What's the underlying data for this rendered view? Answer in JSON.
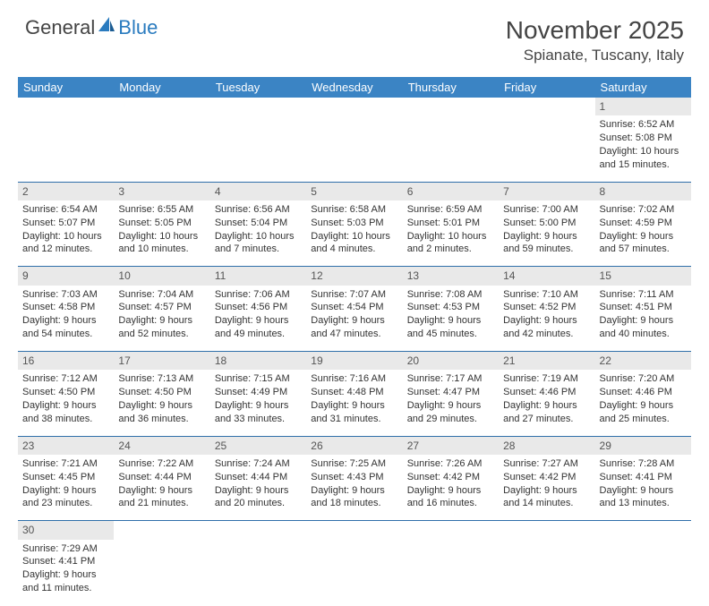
{
  "logo": {
    "part1": "General",
    "part2": "Blue"
  },
  "title": {
    "month": "November 2025",
    "location": "Spianate, Tuscany, Italy"
  },
  "colors": {
    "header_bg": "#3b84c4",
    "header_text": "#ffffff",
    "daynum_bg": "#e9e9e9",
    "rule": "#2f6faa",
    "logo_blue": "#2a7bbf",
    "text": "#333333"
  },
  "weekdays": [
    "Sunday",
    "Monday",
    "Tuesday",
    "Wednesday",
    "Thursday",
    "Friday",
    "Saturday"
  ],
  "weeks": [
    {
      "nums": [
        "",
        "",
        "",
        "",
        "",
        "",
        "1"
      ],
      "cells": [
        null,
        null,
        null,
        null,
        null,
        null,
        {
          "sunrise": "Sunrise: 6:52 AM",
          "sunset": "Sunset: 5:08 PM",
          "day1": "Daylight: 10 hours",
          "day2": "and 15 minutes."
        }
      ]
    },
    {
      "nums": [
        "2",
        "3",
        "4",
        "5",
        "6",
        "7",
        "8"
      ],
      "cells": [
        {
          "sunrise": "Sunrise: 6:54 AM",
          "sunset": "Sunset: 5:07 PM",
          "day1": "Daylight: 10 hours",
          "day2": "and 12 minutes."
        },
        {
          "sunrise": "Sunrise: 6:55 AM",
          "sunset": "Sunset: 5:05 PM",
          "day1": "Daylight: 10 hours",
          "day2": "and 10 minutes."
        },
        {
          "sunrise": "Sunrise: 6:56 AM",
          "sunset": "Sunset: 5:04 PM",
          "day1": "Daylight: 10 hours",
          "day2": "and 7 minutes."
        },
        {
          "sunrise": "Sunrise: 6:58 AM",
          "sunset": "Sunset: 5:03 PM",
          "day1": "Daylight: 10 hours",
          "day2": "and 4 minutes."
        },
        {
          "sunrise": "Sunrise: 6:59 AM",
          "sunset": "Sunset: 5:01 PM",
          "day1": "Daylight: 10 hours",
          "day2": "and 2 minutes."
        },
        {
          "sunrise": "Sunrise: 7:00 AM",
          "sunset": "Sunset: 5:00 PM",
          "day1": "Daylight: 9 hours",
          "day2": "and 59 minutes."
        },
        {
          "sunrise": "Sunrise: 7:02 AM",
          "sunset": "Sunset: 4:59 PM",
          "day1": "Daylight: 9 hours",
          "day2": "and 57 minutes."
        }
      ]
    },
    {
      "nums": [
        "9",
        "10",
        "11",
        "12",
        "13",
        "14",
        "15"
      ],
      "cells": [
        {
          "sunrise": "Sunrise: 7:03 AM",
          "sunset": "Sunset: 4:58 PM",
          "day1": "Daylight: 9 hours",
          "day2": "and 54 minutes."
        },
        {
          "sunrise": "Sunrise: 7:04 AM",
          "sunset": "Sunset: 4:57 PM",
          "day1": "Daylight: 9 hours",
          "day2": "and 52 minutes."
        },
        {
          "sunrise": "Sunrise: 7:06 AM",
          "sunset": "Sunset: 4:56 PM",
          "day1": "Daylight: 9 hours",
          "day2": "and 49 minutes."
        },
        {
          "sunrise": "Sunrise: 7:07 AM",
          "sunset": "Sunset: 4:54 PM",
          "day1": "Daylight: 9 hours",
          "day2": "and 47 minutes."
        },
        {
          "sunrise": "Sunrise: 7:08 AM",
          "sunset": "Sunset: 4:53 PM",
          "day1": "Daylight: 9 hours",
          "day2": "and 45 minutes."
        },
        {
          "sunrise": "Sunrise: 7:10 AM",
          "sunset": "Sunset: 4:52 PM",
          "day1": "Daylight: 9 hours",
          "day2": "and 42 minutes."
        },
        {
          "sunrise": "Sunrise: 7:11 AM",
          "sunset": "Sunset: 4:51 PM",
          "day1": "Daylight: 9 hours",
          "day2": "and 40 minutes."
        }
      ]
    },
    {
      "nums": [
        "16",
        "17",
        "18",
        "19",
        "20",
        "21",
        "22"
      ],
      "cells": [
        {
          "sunrise": "Sunrise: 7:12 AM",
          "sunset": "Sunset: 4:50 PM",
          "day1": "Daylight: 9 hours",
          "day2": "and 38 minutes."
        },
        {
          "sunrise": "Sunrise: 7:13 AM",
          "sunset": "Sunset: 4:50 PM",
          "day1": "Daylight: 9 hours",
          "day2": "and 36 minutes."
        },
        {
          "sunrise": "Sunrise: 7:15 AM",
          "sunset": "Sunset: 4:49 PM",
          "day1": "Daylight: 9 hours",
          "day2": "and 33 minutes."
        },
        {
          "sunrise": "Sunrise: 7:16 AM",
          "sunset": "Sunset: 4:48 PM",
          "day1": "Daylight: 9 hours",
          "day2": "and 31 minutes."
        },
        {
          "sunrise": "Sunrise: 7:17 AM",
          "sunset": "Sunset: 4:47 PM",
          "day1": "Daylight: 9 hours",
          "day2": "and 29 minutes."
        },
        {
          "sunrise": "Sunrise: 7:19 AM",
          "sunset": "Sunset: 4:46 PM",
          "day1": "Daylight: 9 hours",
          "day2": "and 27 minutes."
        },
        {
          "sunrise": "Sunrise: 7:20 AM",
          "sunset": "Sunset: 4:46 PM",
          "day1": "Daylight: 9 hours",
          "day2": "and 25 minutes."
        }
      ]
    },
    {
      "nums": [
        "23",
        "24",
        "25",
        "26",
        "27",
        "28",
        "29"
      ],
      "cells": [
        {
          "sunrise": "Sunrise: 7:21 AM",
          "sunset": "Sunset: 4:45 PM",
          "day1": "Daylight: 9 hours",
          "day2": "and 23 minutes."
        },
        {
          "sunrise": "Sunrise: 7:22 AM",
          "sunset": "Sunset: 4:44 PM",
          "day1": "Daylight: 9 hours",
          "day2": "and 21 minutes."
        },
        {
          "sunrise": "Sunrise: 7:24 AM",
          "sunset": "Sunset: 4:44 PM",
          "day1": "Daylight: 9 hours",
          "day2": "and 20 minutes."
        },
        {
          "sunrise": "Sunrise: 7:25 AM",
          "sunset": "Sunset: 4:43 PM",
          "day1": "Daylight: 9 hours",
          "day2": "and 18 minutes."
        },
        {
          "sunrise": "Sunrise: 7:26 AM",
          "sunset": "Sunset: 4:42 PM",
          "day1": "Daylight: 9 hours",
          "day2": "and 16 minutes."
        },
        {
          "sunrise": "Sunrise: 7:27 AM",
          "sunset": "Sunset: 4:42 PM",
          "day1": "Daylight: 9 hours",
          "day2": "and 14 minutes."
        },
        {
          "sunrise": "Sunrise: 7:28 AM",
          "sunset": "Sunset: 4:41 PM",
          "day1": "Daylight: 9 hours",
          "day2": "and 13 minutes."
        }
      ]
    },
    {
      "nums": [
        "30",
        "",
        "",
        "",
        "",
        "",
        ""
      ],
      "cells": [
        {
          "sunrise": "Sunrise: 7:29 AM",
          "sunset": "Sunset: 4:41 PM",
          "day1": "Daylight: 9 hours",
          "day2": "and 11 minutes."
        },
        null,
        null,
        null,
        null,
        null,
        null
      ]
    }
  ]
}
